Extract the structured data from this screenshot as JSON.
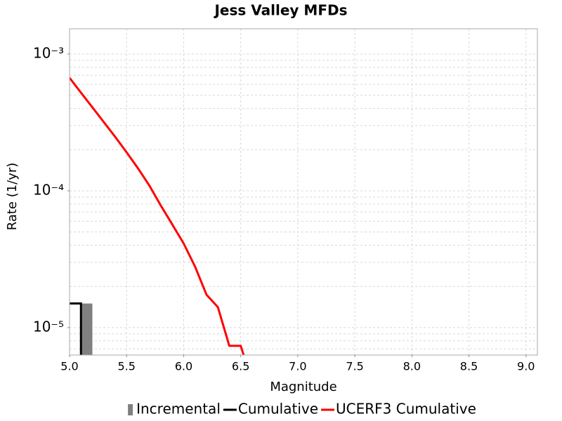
{
  "chart_data": {
    "type": "line",
    "title": "Jess Valley MFDs",
    "xlabel": "Magnitude",
    "ylabel": "Rate (1/yr)",
    "xlim": [
      5.0,
      9.1
    ],
    "xticks": [
      {
        "value": 5.0,
        "label": "5.0"
      },
      5.5,
      {
        "value": 6.0,
        "label": "6.0"
      },
      6.5,
      {
        "value": 7.0,
        "label": "7.0"
      },
      7.5,
      {
        "value": 8.0,
        "label": "8.0"
      },
      8.5,
      {
        "value": 9.0,
        "label": "9.0"
      }
    ],
    "ylim": [
      6.3e-06,
      0.00153
    ],
    "ylog": true,
    "yticks": [
      {
        "value": 1e-05,
        "label": "10⁻⁵"
      },
      {
        "value": 0.0001,
        "label": "10⁻⁴"
      },
      {
        "value": 0.001,
        "label": "10⁻³"
      }
    ],
    "grid": true,
    "minor_grid": true,
    "legend": "bottom",
    "series": [
      {
        "name": "Incremental",
        "color": "#808080",
        "kind": "bar",
        "bins": [
          5.1,
          5.2
        ],
        "values": [
          1.5e-05
        ]
      },
      {
        "name": "Cumulative",
        "color": "#000000",
        "kind": "step",
        "x": [
          5.0,
          5.1
        ],
        "values": [
          1.5e-05,
          1.5e-05
        ]
      },
      {
        "name": "UCERF3 Cumulative",
        "color": "#ff0000",
        "kind": "line",
        "x": [
          5.0,
          5.1,
          5.2,
          5.3,
          5.4,
          5.5,
          5.6,
          5.7,
          5.8,
          5.9,
          6.0,
          6.1,
          6.2,
          6.3,
          6.4,
          6.5,
          6.6
        ],
        "values": [
          0.00067,
          0.000522,
          0.000408,
          0.000318,
          0.000248,
          0.000191,
          0.000146,
          0.000109,
          7.8e-05,
          5.68e-05,
          4.12e-05,
          2.79e-05,
          1.74e-05,
          1.41e-05,
          7.36e-06,
          7.36e-06,
          4e-06
        ]
      }
    ]
  }
}
